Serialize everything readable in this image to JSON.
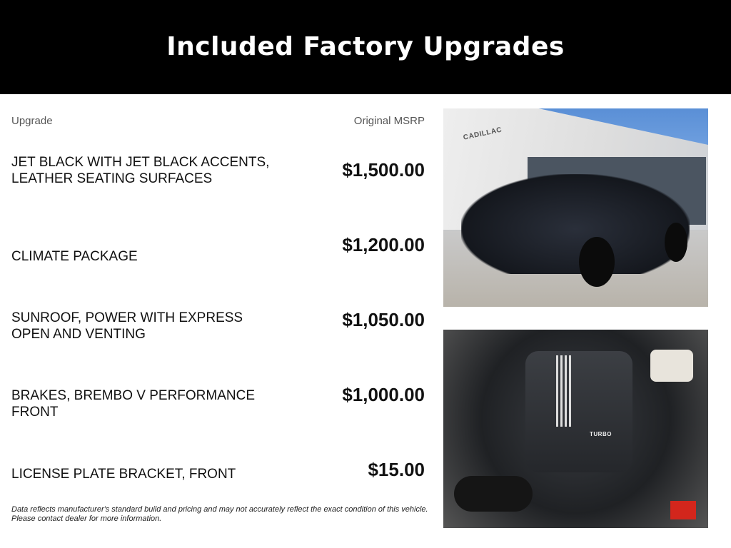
{
  "header": {
    "title": "Included Factory Upgrades"
  },
  "columns": {
    "upgrade": "Upgrade",
    "msrp": "Original MSRP"
  },
  "rows": [
    {
      "label": "JET BLACK WITH JET BLACK ACCENTS, LEATHER SEATING SURFACES",
      "price": "$1,500.00"
    },
    {
      "label": "CLIMATE PACKAGE",
      "price": "$1,200.00"
    },
    {
      "label": "SUNROOF, POWER WITH EXPRESS OPEN AND VENTING",
      "price": "$1,050.00"
    },
    {
      "label": "BRAKES, BREMBO V PERFORMANCE FRONT",
      "price": "$1,000.00"
    },
    {
      "label": "LICENSE PLATE BRACKET, FRONT",
      "price": "$15.00"
    }
  ],
  "note": {
    "line1": "Data reflects manufacturer's standard build and pricing and may not accurately reflect the exact condition of this vehicle.",
    "line2": "Please contact dealer for more information."
  },
  "photos": {
    "dealer_sign": "CADILLAC",
    "engine_badge": "TURBO"
  }
}
